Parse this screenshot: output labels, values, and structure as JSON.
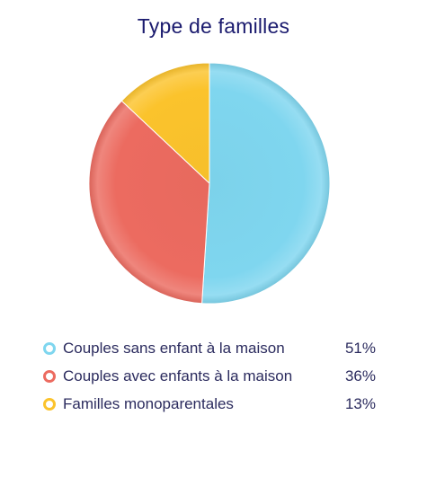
{
  "chart_data": {
    "type": "pie",
    "title": "Type de familles",
    "legend_position": "bottom",
    "series": [
      {
        "name": "Couples sans enfant à la maison",
        "value": 51,
        "value_label": "51%",
        "color": "#7fd6ef"
      },
      {
        "name": "Couples avec enfants à la maison",
        "value": 36,
        "value_label": "36%",
        "color": "#ec6b60"
      },
      {
        "name": "Familles monoparentales",
        "value": 13,
        "value_label": "13%",
        "color": "#fbc32c"
      }
    ]
  }
}
